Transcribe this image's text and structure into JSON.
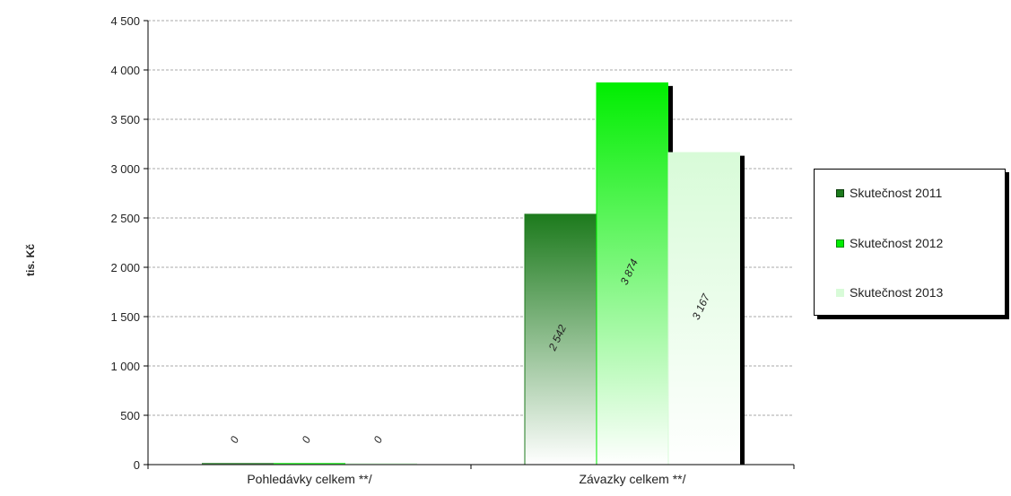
{
  "chart_data": {
    "type": "bar",
    "ylabel": "tis. Kč",
    "ylim": [
      0,
      4500
    ],
    "ytick_step": 500,
    "yticks": [
      "0",
      "500",
      "1 000",
      "1 500",
      "2 000",
      "2 500",
      "3 000",
      "3 500",
      "4 000",
      "4 500"
    ],
    "grid": true,
    "legend_position": "right",
    "categories": [
      "Pohledávky celkem **/",
      "Závazky celkem **/"
    ],
    "series": [
      {
        "name": "Skutečnost 2011",
        "values": [
          0,
          2542
        ],
        "labels": [
          "0",
          "2 542"
        ],
        "color_top": "#1c7a1c",
        "color_bottom": "#ffffff"
      },
      {
        "name": "Skutečnost 2012",
        "values": [
          0,
          3874
        ],
        "labels": [
          "0",
          "3 874"
        ],
        "color_top": "#00ee00",
        "color_bottom": "#ffffff"
      },
      {
        "name": "Skutečnost 2013",
        "values": [
          0,
          3167
        ],
        "labels": [
          "0",
          "3 167"
        ],
        "color_top": "#d8fbd8",
        "color_bottom": "#ffffff"
      }
    ]
  }
}
